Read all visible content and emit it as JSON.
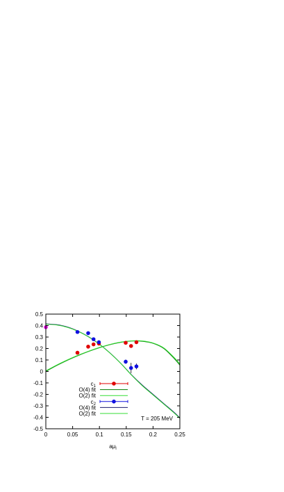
{
  "chart_data": {
    "type": "scatter",
    "xlabel": "aμ",
    "xlabel_sub": "l",
    "xlim": [
      0,
      0.25
    ],
    "ylim": [
      -0.5,
      0.5
    ],
    "xticks": [
      "0",
      "0.05",
      "0.1",
      "0.15",
      "0.2",
      "0.25"
    ],
    "xtick_values": [
      0,
      0.05,
      0.1,
      0.15,
      0.2,
      0.25
    ],
    "yticks": [
      "0.5",
      "0.4",
      "0.3",
      "0.2",
      "0.1",
      "0",
      "-0.1",
      "-0.2",
      "-0.3",
      "-0.4",
      "-0.5"
    ],
    "ytick_values": [
      0.5,
      0.4,
      0.3,
      0.2,
      0.1,
      0,
      -0.1,
      -0.2,
      -0.3,
      -0.4,
      -0.5
    ],
    "annotation": "T = 205 MeV",
    "grid": false,
    "legend_position": "bottom-left",
    "legend": [
      {
        "label": "c",
        "sub": "1",
        "kind": "points",
        "color": "#e00000"
      },
      {
        "label": "O(4) fit",
        "kind": "line",
        "color": "#007a00"
      },
      {
        "label": "O(2) fit",
        "kind": "line",
        "color": "#33dd33"
      },
      {
        "label": "c",
        "sub": "2",
        "kind": "points",
        "color": "#1010e0"
      },
      {
        "label": "O(4) fit",
        "kind": "line",
        "color": "#1a1a6e"
      },
      {
        "label": "O(2) fit",
        "kind": "line",
        "color": "#33dd33"
      }
    ],
    "series": [
      {
        "name": "c1",
        "kind": "points",
        "color": "#e00000",
        "points": [
          {
            "x": 0.059,
            "y": 0.163,
            "err": 0.012
          },
          {
            "x": 0.079,
            "y": 0.216,
            "err": 0.012
          },
          {
            "x": 0.089,
            "y": 0.236,
            "err": 0.012
          },
          {
            "x": 0.099,
            "y": 0.243,
            "err": 0.012
          },
          {
            "x": 0.149,
            "y": 0.25,
            "err": 0.012
          },
          {
            "x": 0.159,
            "y": 0.222,
            "err": 0.015
          },
          {
            "x": 0.169,
            "y": 0.255,
            "err": 0.012
          }
        ]
      },
      {
        "name": "c2",
        "kind": "points",
        "color": "#1010e0",
        "points": [
          {
            "x": 0.059,
            "y": 0.344,
            "err": 0.012
          },
          {
            "x": 0.079,
            "y": 0.334,
            "err": 0.012
          },
          {
            "x": 0.089,
            "y": 0.281,
            "err": 0.012
          },
          {
            "x": 0.099,
            "y": 0.255,
            "err": 0.015
          },
          {
            "x": 0.149,
            "y": 0.085,
            "err": 0.018
          },
          {
            "x": 0.159,
            "y": 0.03,
            "err": 0.045
          },
          {
            "x": 0.169,
            "y": 0.044,
            "err": 0.025
          }
        ]
      },
      {
        "name": "c2 at 0",
        "kind": "points",
        "color": "#e000e0",
        "points": [
          {
            "x": 0.0,
            "y": 0.386,
            "err": 0.0
          }
        ]
      },
      {
        "name": "c1 O(4) fit",
        "kind": "line",
        "color": "#007a00",
        "x": [
          0,
          0.02,
          0.04,
          0.06,
          0.08,
          0.1,
          0.12,
          0.14,
          0.16,
          0.18,
          0.2,
          0.22,
          0.24,
          0.25
        ],
        "y": [
          0.0,
          0.051,
          0.097,
          0.138,
          0.175,
          0.207,
          0.234,
          0.254,
          0.265,
          0.263,
          0.245,
          0.2,
          0.11,
          0.055
        ]
      },
      {
        "name": "c1 O(2) fit",
        "kind": "line",
        "color": "#33dd33",
        "x": [
          0,
          0.02,
          0.04,
          0.06,
          0.08,
          0.1,
          0.12,
          0.14,
          0.16,
          0.18,
          0.2,
          0.22,
          0.24,
          0.25
        ],
        "y": [
          0.005,
          0.055,
          0.1,
          0.141,
          0.177,
          0.209,
          0.236,
          0.256,
          0.267,
          0.266,
          0.248,
          0.205,
          0.118,
          0.065
        ]
      },
      {
        "name": "c2 O(4) fit",
        "kind": "line",
        "color": "#1a1a6e",
        "x": [
          0,
          0.02,
          0.04,
          0.06,
          0.08,
          0.1,
          0.12,
          0.14,
          0.16,
          0.18,
          0.2,
          0.22,
          0.24,
          0.25
        ],
        "y": [
          0.415,
          0.408,
          0.388,
          0.352,
          0.302,
          0.238,
          0.16,
          0.07,
          -0.03,
          -0.12,
          -0.2,
          -0.28,
          -0.36,
          -0.405
        ]
      },
      {
        "name": "c2 O(2) fit",
        "kind": "line",
        "color": "#33dd33",
        "x": [
          0,
          0.02,
          0.04,
          0.06,
          0.08,
          0.1,
          0.12,
          0.14,
          0.16,
          0.18,
          0.2,
          0.22,
          0.24,
          0.25
        ],
        "y": [
          0.412,
          0.405,
          0.385,
          0.35,
          0.3,
          0.236,
          0.158,
          0.068,
          -0.033,
          -0.125,
          -0.205,
          -0.285,
          -0.365,
          -0.41
        ]
      }
    ]
  }
}
